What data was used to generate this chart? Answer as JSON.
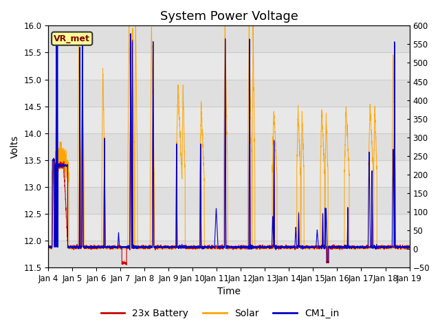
{
  "title": "System Power Voltage",
  "xlabel": "Time",
  "ylabel": "Volts",
  "ylim_left": [
    11.5,
    16.0
  ],
  "ylim_right": [
    -50,
    600
  ],
  "yticks_left": [
    11.5,
    12.0,
    12.5,
    13.0,
    13.5,
    14.0,
    14.5,
    15.0,
    15.5,
    16.0
  ],
  "yticks_right": [
    -50,
    0,
    50,
    100,
    150,
    200,
    250,
    300,
    350,
    400,
    450,
    500,
    550,
    600
  ],
  "xticklabels": [
    "Jan 4",
    "Jan 5",
    "Jan 6",
    "Jan 7",
    "Jan 8",
    "Jan 9",
    "Jan 10",
    "Jan 11",
    "Jan 12",
    "Jan 13",
    "Jan 14",
    "Jan 15",
    "Jan 16",
    "Jan 17",
    "Jan 18",
    "Jan 19"
  ],
  "legend_labels": [
    "23x Battery",
    "Solar",
    "CM1_in"
  ],
  "battery_color": "#cc0000",
  "solar_color": "#ffa500",
  "cm1_color": "#0000cc",
  "annotation_text": "VR_met",
  "annotation_color": "#800000",
  "annotation_bg": "#ffff99",
  "bg_color": "#e8e8e8",
  "fig_bg": "#ffffff",
  "grid_color": "#cccccc",
  "title_fontsize": 13,
  "label_fontsize": 10,
  "tick_fontsize": 8.5,
  "legend_fontsize": 10
}
